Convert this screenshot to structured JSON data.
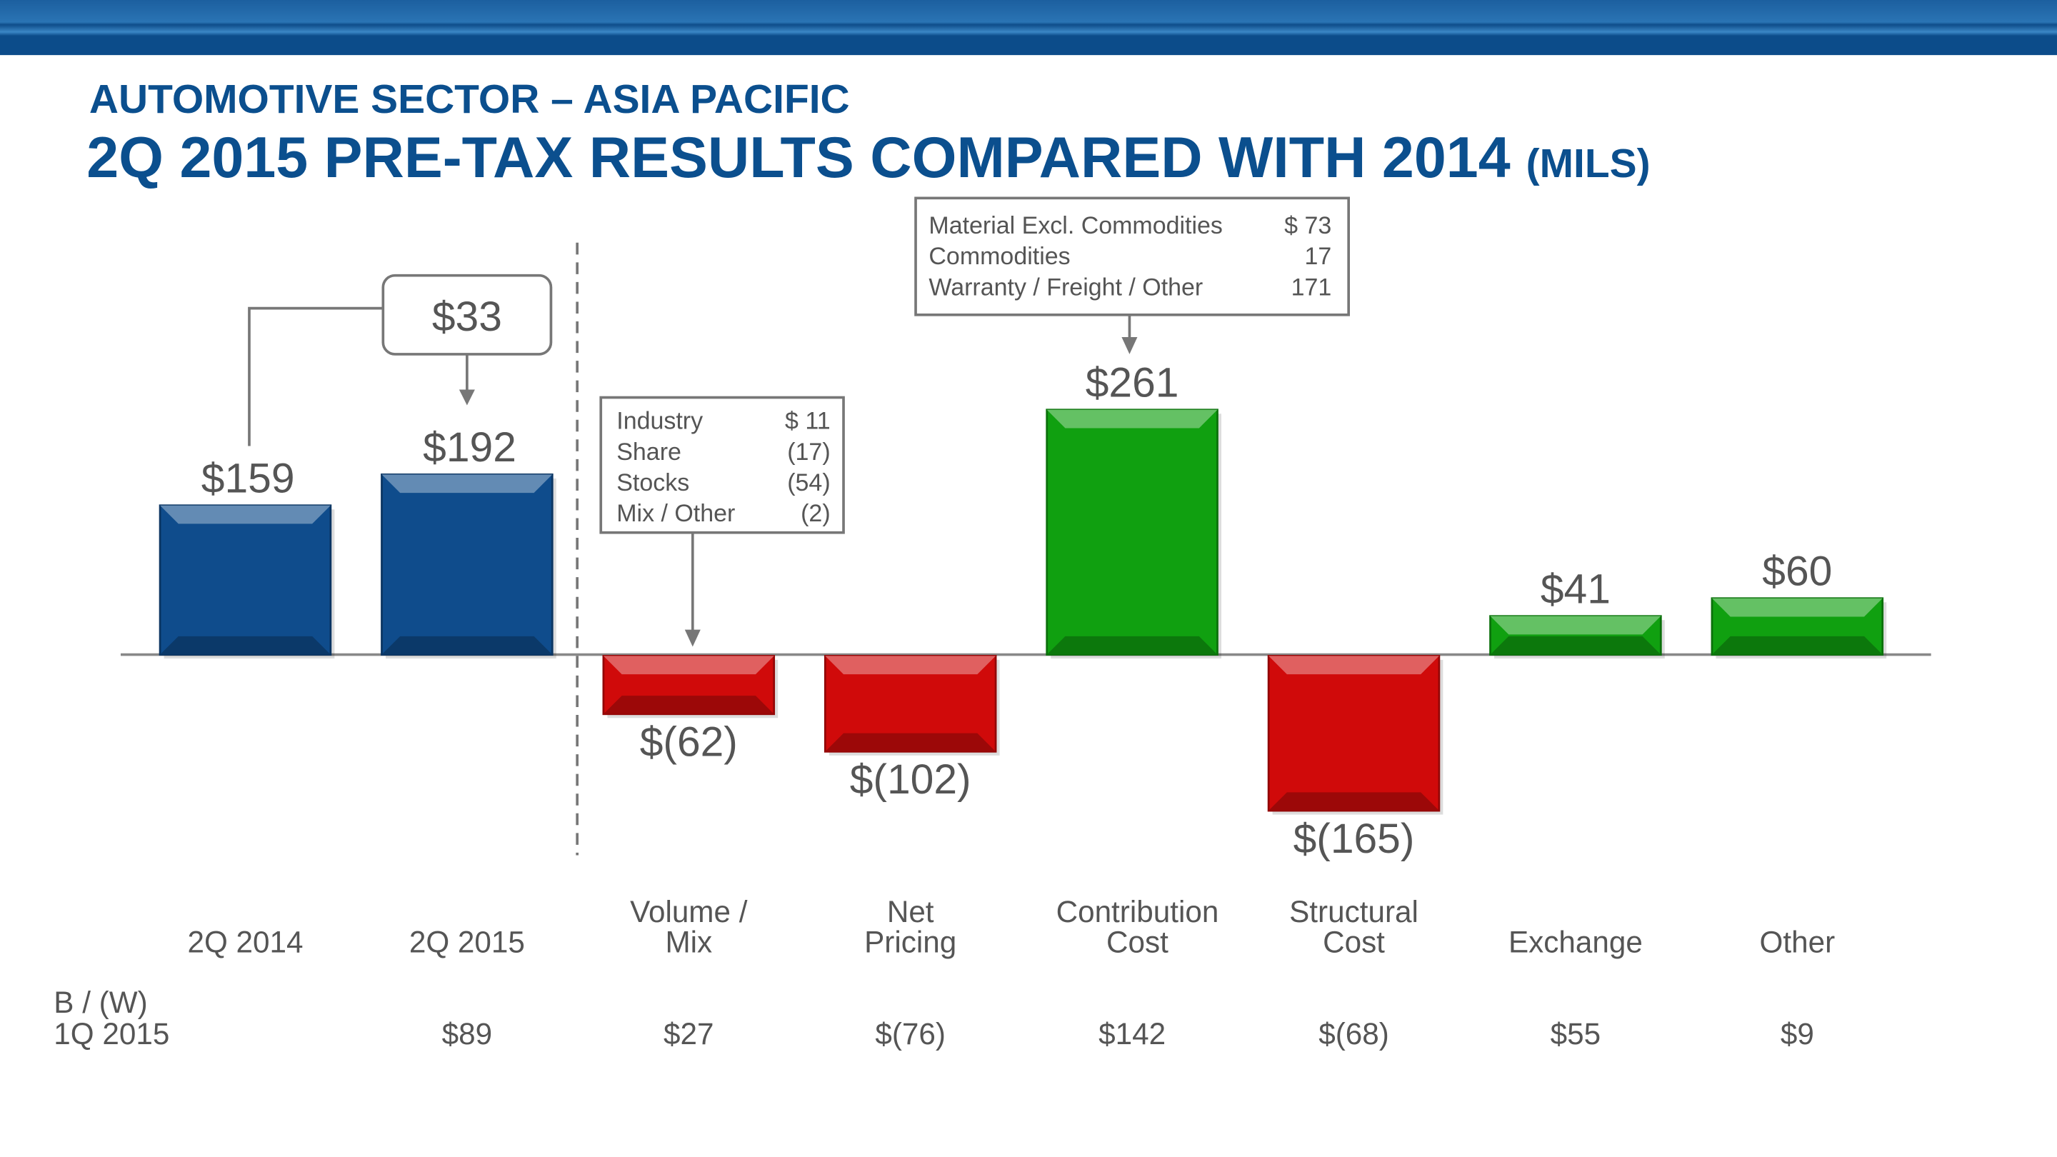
{
  "header": {
    "subtitle": "AUTOMOTIVE SECTOR – ASIA PACIFIC",
    "title": "2Q 2015 PRE-TAX RESULTS COMPARED WITH 2014",
    "title_unit": "(MILS)"
  },
  "colors": {
    "brand": "#0b4f8e",
    "total": "#0f4c8c",
    "positive": "#10a010",
    "negative": "#d00a0a",
    "text": "#555555"
  },
  "chart_data": {
    "type": "bar",
    "title": "2Q 2015 PRE-TAX RESULTS COMPARED WITH 2014 (MILS)",
    "categories": [
      [
        "2Q 2014"
      ],
      [
        "2Q 2015"
      ],
      [
        "Volume /",
        "Mix"
      ],
      [
        "Net",
        "Pricing"
      ],
      [
        "Contribution",
        "Cost"
      ],
      [
        "Structural",
        "Cost"
      ],
      [
        "Exchange"
      ],
      [
        "Other"
      ]
    ],
    "values": [
      159,
      192,
      -62,
      -102,
      261,
      -165,
      41,
      60
    ],
    "value_labels": [
      "$159",
      "$192",
      "$(62)",
      "$(102)",
      "$261",
      "$(165)",
      "$41",
      "$60"
    ],
    "bar_kinds": [
      "total",
      "total",
      "change",
      "change",
      "change",
      "change",
      "change",
      "change"
    ],
    "change_label": "$33",
    "bw_row": {
      "label": [
        "B / (W)",
        "1Q 2015"
      ],
      "values": [
        "",
        "$89",
        "$27",
        "$(76)",
        "$142",
        "$(68)",
        "$55",
        "$9"
      ]
    },
    "callouts": {
      "volume_mix": [
        {
          "label": "Industry",
          "value": "$ 11"
        },
        {
          "label": "Share",
          "value": "(17)"
        },
        {
          "label": "Stocks",
          "value": "(54)"
        },
        {
          "label": "Mix / Other",
          "value": "(2)"
        }
      ],
      "contribution_cost": [
        {
          "label": "Material Excl. Commodities",
          "value": "$ 73"
        },
        {
          "label": "Commodities",
          "value": "17"
        },
        {
          "label": "Warranty / Freight / Other",
          "value": "171"
        }
      ]
    },
    "xlabel": "",
    "ylabel": "",
    "grid": false
  }
}
